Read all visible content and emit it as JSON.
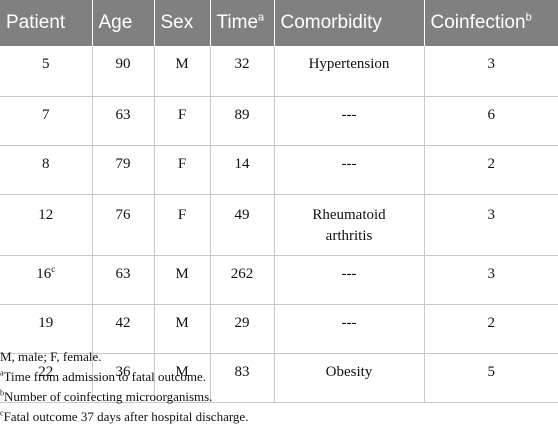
{
  "table": {
    "headers": {
      "patient": "Patient",
      "age": "Age",
      "sex": "Sex",
      "time": "Time",
      "time_sup": "a",
      "comorbidity": "Comorbidity",
      "coinfection": "Coinfection",
      "coinfection_sup": "b"
    },
    "rows": [
      {
        "patient": "5",
        "patient_sup": "",
        "age": "90",
        "sex": "M",
        "time": "32",
        "comorbidity": "Hypertension",
        "coinfection": "3"
      },
      {
        "patient": "7",
        "patient_sup": "",
        "age": "63",
        "sex": "F",
        "time": "89",
        "comorbidity": "---",
        "coinfection": "6"
      },
      {
        "patient": "8",
        "patient_sup": "",
        "age": "79",
        "sex": "F",
        "time": "14",
        "comorbidity": "---",
        "coinfection": "2"
      },
      {
        "patient": "12",
        "patient_sup": "",
        "age": "76",
        "sex": "F",
        "time": "49",
        "comorbidity": "Rheumatoid arthritis",
        "coinfection": "3"
      },
      {
        "patient": "16",
        "patient_sup": "c",
        "age": "63",
        "sex": "M",
        "time": "262",
        "comorbidity": "---",
        "coinfection": "3"
      },
      {
        "patient": "19",
        "patient_sup": "",
        "age": "42",
        "sex": "M",
        "time": "29",
        "comorbidity": "---",
        "coinfection": "2"
      },
      {
        "patient": "22",
        "patient_sup": "",
        "age": "36",
        "sex": "M",
        "time": "83",
        "comorbidity": "Obesity",
        "coinfection": "5"
      }
    ]
  },
  "footnotes": {
    "abbrev": "M, male; F, female.",
    "a_mark": "a",
    "a_text": "Time from admission to fatal outcome.",
    "b_mark": "b",
    "b_text": "Number of coinfecting microorganisms.",
    "c_mark": "c",
    "c_text": "Fatal outcome 37 days after hospital discharge."
  }
}
